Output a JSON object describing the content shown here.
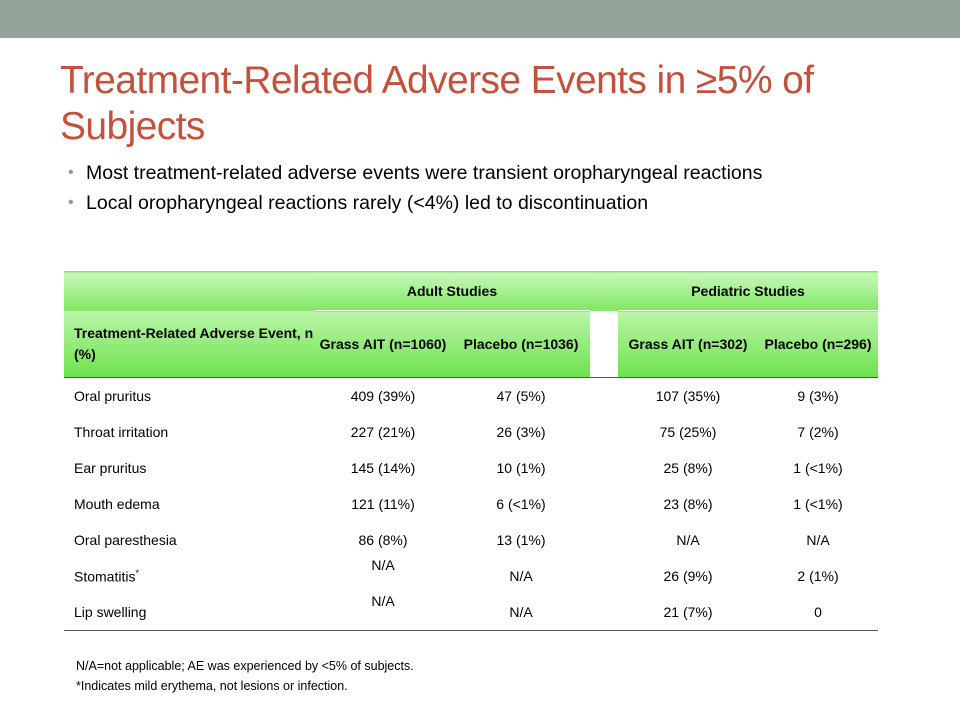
{
  "title": "Treatment-Related Adverse Events in ≥5% of Subjects",
  "bullets": [
    "Most treatment-related adverse events were transient oropharyngeal reactions",
    "Local oropharyngeal reactions rarely (<4%) led to discontinuation"
  ],
  "table": {
    "group_headers": [
      "Adult Studies",
      "Pediatric Studies"
    ],
    "columns": [
      "Treatment-Related Adverse Event, n (%)",
      "Grass AIT (n=1060)",
      "Placebo (n=1036)",
      "Grass AIT (n=302)",
      "Placebo (n=296)"
    ],
    "rows": [
      {
        "event": "Oral pruritus",
        "adult_ait": "409 (39%)",
        "adult_placebo": "47 (5%)",
        "ped_ait": "107 (35%)",
        "ped_placebo": "9 (3%)"
      },
      {
        "event": "Throat irritation",
        "adult_ait": "227 (21%)",
        "adult_placebo": "26 (3%)",
        "ped_ait": "75 (25%)",
        "ped_placebo": "7 (2%)"
      },
      {
        "event": "Ear pruritus",
        "adult_ait": "145 (14%)",
        "adult_placebo": "10 (1%)",
        "ped_ait": "25 (8%)",
        "ped_placebo": "1 (<1%)"
      },
      {
        "event": "Mouth edema",
        "adult_ait": "121 (11%)",
        "adult_placebo": "6 (<1%)",
        "ped_ait": "23 (8%)",
        "ped_placebo": "1 (<1%)"
      },
      {
        "event": "Oral paresthesia",
        "adult_ait": "86 (8%)",
        "adult_placebo": "13 (1%)",
        "ped_ait": "N/A",
        "ped_placebo": "N/A"
      },
      {
        "event": "Stomatitis",
        "event_sup": "*",
        "adult_ait": "N/A",
        "adult_placebo": "N/A",
        "ped_ait": "26 (9%)",
        "ped_placebo": "2 (1%)"
      },
      {
        "event": "Lip swelling",
        "adult_ait": "N/A",
        "adult_placebo": "N/A",
        "ped_ait": "21 (7%)",
        "ped_placebo": "0"
      }
    ]
  },
  "footnotes": [
    "N/A=not applicable; AE was experienced by <5% of subjects.",
    "*Indicates mild erythema, not lesions or infection."
  ],
  "colors": {
    "title": "#c2513d",
    "top_bar": "#95a39a",
    "header_green": "#7fe861"
  }
}
